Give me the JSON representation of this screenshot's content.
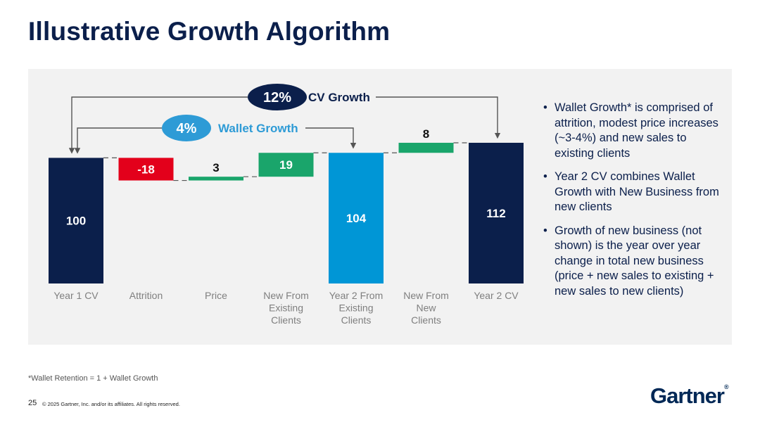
{
  "title": "Illustrative Growth Algorithm",
  "chart_data": {
    "type": "waterfall",
    "categories": [
      "Year 1 CV",
      "Attrition",
      "Price",
      "New From Existing Clients",
      "Year 2 From Existing Clients",
      "New From New Clients",
      "Year 2 CV"
    ],
    "category_lines": [
      [
        "Year 1 CV"
      ],
      [
        "Attrition"
      ],
      [
        "Price"
      ],
      [
        "New From",
        "Existing",
        "Clients"
      ],
      [
        "Year 2 From",
        "Existing",
        "Clients"
      ],
      [
        "New From",
        "New",
        "Clients"
      ],
      [
        "Year 2 CV"
      ]
    ],
    "values": [
      100,
      -18,
      3,
      19,
      104,
      8,
      112
    ],
    "labels": [
      "100",
      "-18",
      "3",
      "19",
      "104",
      "8",
      "112"
    ],
    "kinds": [
      "total",
      "delta",
      "delta",
      "delta",
      "total",
      "delta",
      "total"
    ],
    "colors": [
      "#0b1f4b",
      "#e3001b",
      "#1aa56b",
      "#1aa56b",
      "#0096d6",
      "#1aa56b",
      "#0b1f4b"
    ],
    "annotations": [
      {
        "badge": "12%",
        "label": "CV Growth",
        "from": 0,
        "to": 6,
        "color": "#0b1f4b"
      },
      {
        "badge": "4%",
        "label": "Wallet Growth",
        "from": 0,
        "to": 4,
        "color": "#2e9bd6"
      }
    ]
  },
  "bullets": [
    "Wallet Growth* is comprised of attrition, modest price increases (~3-4%) and new sales to existing clients",
    "Year 2 CV combines Wallet Growth with New Business from new clients",
    "Growth of new business (not shown) is the year over year change in total new business (price + new sales to existing + new sales to new clients)"
  ],
  "footnote": "*Wallet Retention = 1 + Wallet Growth",
  "page_number": "25",
  "copyright": "© 2025 Gartner, Inc. and/or its affiliates. All rights reserved.",
  "logo": "Gartner",
  "logo_mark": "®"
}
